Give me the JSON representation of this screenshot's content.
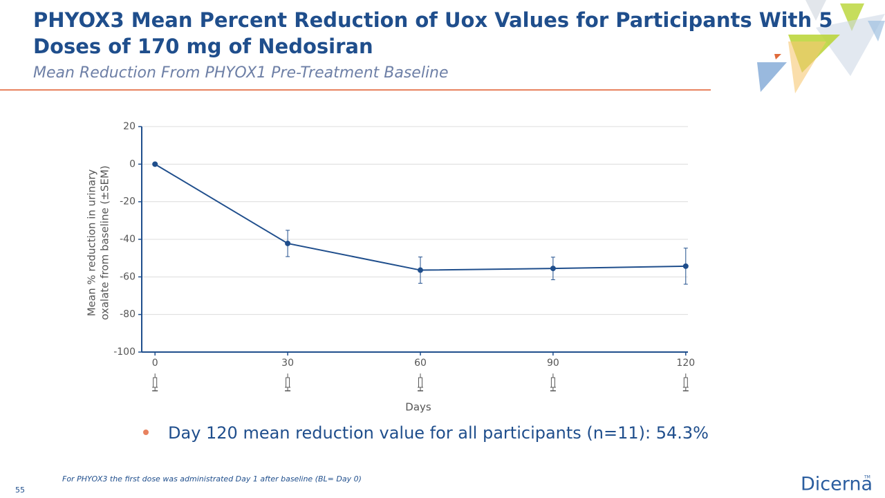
{
  "header": {
    "title_lines": [
      "PHYOX3 Mean Percent Reduction of Uox Values for Participants With 5",
      "Doses of 170 mg of Nedosiran"
    ],
    "subtitle": "Mean Reduction From PHYOX1 Pre-Treatment Baseline"
  },
  "chart_data": {
    "type": "line",
    "x": [
      0,
      30,
      60,
      90,
      120
    ],
    "values": [
      0,
      -42.2,
      -56.4,
      -55.5,
      -54.3
    ],
    "errors": [
      0,
      7,
      7,
      6,
      9.6
    ],
    "color": "#1f4e8c",
    "xlabel": "Days",
    "ylabel": [
      "Mean % reduction in urinary",
      "oxalate from baseline (±SEM)"
    ],
    "xlim": [
      -3,
      120.5
    ],
    "xticks": [
      0,
      30,
      60,
      90,
      120
    ],
    "ylim": [
      -100,
      20
    ],
    "yticks": [
      -100,
      -80,
      -60,
      -40,
      -20,
      0,
      20
    ],
    "grid": true
  },
  "bullet": "Day 120 mean reduction value for all participants (n=11): 54.3%",
  "footnote": "For PHYOX3 the first dose was administrated Day 1 after baseline (BL= Day 0)",
  "page_number": "55",
  "logo": {
    "name": "Dicerna",
    "mark": "TM"
  }
}
